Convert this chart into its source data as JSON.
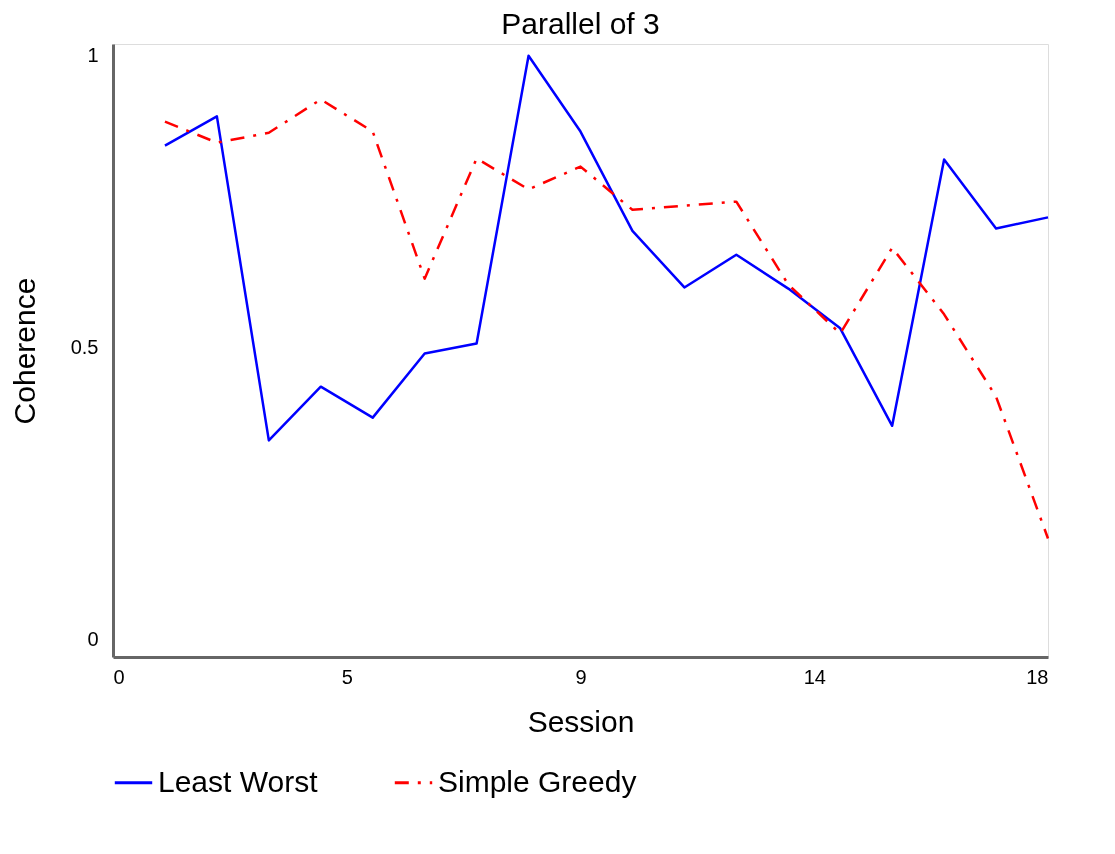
{
  "chart_data": {
    "type": "line",
    "title": "Parallel of 3",
    "xlabel": "Session",
    "ylabel": "Coherence",
    "x": [
      1,
      2,
      3,
      4,
      5,
      6,
      7,
      8,
      9,
      10,
      11,
      12,
      13,
      14,
      15,
      16,
      17,
      18
    ],
    "series": [
      {
        "name": "Least Worst",
        "color": "#0000ff",
        "line_style": "solid",
        "values": [
          0.846,
          0.896,
          0.341,
          0.433,
          0.38,
          0.49,
          0.507,
          1.0,
          0.87,
          0.7,
          0.603,
          0.659,
          0.601,
          0.533,
          0.366,
          0.822,
          0.704,
          0.723
        ]
      },
      {
        "name": "Simple Greedy",
        "color": "#ff0000",
        "line_style": "dashed",
        "values": [
          0.887,
          0.851,
          0.868,
          0.925,
          0.87,
          0.618,
          0.824,
          0.771,
          0.81,
          0.736,
          0.743,
          0.75,
          0.608,
          0.524,
          0.671,
          0.557,
          0.416,
          0.173
        ]
      }
    ],
    "xlim": [
      0,
      18
    ],
    "xticks": [
      0,
      {
        "value": 4.5,
        "label": "5"
      },
      9,
      {
        "value": 13.5,
        "label": "14"
      },
      18
    ],
    "ylim": [
      -0.03,
      1.02
    ],
    "yticks": [
      0,
      0.5,
      1
    ],
    "grid": false,
    "legend": "bottom",
    "marker": "none"
  }
}
